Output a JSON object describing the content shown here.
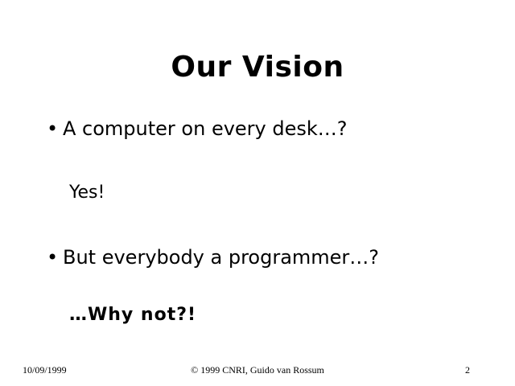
{
  "slide": {
    "title": "Our Vision",
    "bullets": [
      {
        "marker": "•",
        "text": "A computer on every desk…?",
        "answer": "Yes!"
      },
      {
        "marker": "•",
        "text": "But everybody a programmer…?",
        "answer": "…Why not?!"
      }
    ],
    "footer": {
      "date": "10/09/1999",
      "copyright": "© 1999 CNRI, Guido van Rossum",
      "page_number": "2"
    }
  }
}
